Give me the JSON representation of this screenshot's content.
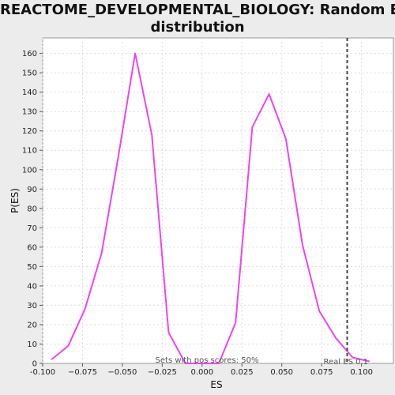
{
  "chart_data": {
    "type": "line",
    "title_line1": "REACTOME_DEVELOPMENTAL_BIOLOGY: Random ES",
    "title_line2": "distribution",
    "xlabel": "ES",
    "ylabel": "P(ES)",
    "xlim": [
      -0.1,
      0.12
    ],
    "ylim": [
      0,
      168
    ],
    "x_ticks": [
      -0.1,
      -0.075,
      -0.05,
      -0.025,
      0.0,
      0.025,
      0.05,
      0.075,
      0.1
    ],
    "x_tick_labels": [
      "-0.100",
      "−0.075",
      "−0.050",
      "−0.025",
      "0.000",
      "0.025",
      "0.050",
      "0.075",
      "0.100"
    ],
    "y_ticks": [
      0,
      10,
      20,
      30,
      40,
      50,
      60,
      70,
      80,
      90,
      100,
      110,
      120,
      130,
      140,
      150,
      160
    ],
    "grid": true,
    "series": [
      {
        "color": "#ee44ee",
        "x": [
          -0.0945,
          -0.084,
          -0.0735,
          -0.063,
          -0.0525,
          -0.042,
          -0.0315,
          -0.021,
          -0.0105,
          0.0,
          0.0105,
          0.021,
          0.0315,
          0.042,
          0.0525,
          0.063,
          0.0735,
          0.084,
          0.0945,
          0.105
        ],
        "values": [
          2,
          9,
          28,
          57,
          107,
          160,
          118,
          16,
          0,
          0,
          0,
          21,
          122,
          139,
          116,
          61,
          27,
          13,
          3,
          1
        ]
      }
    ],
    "real_es": 0.091,
    "real_es_color": "#444444",
    "annotation_center": "Sets with pos scores: 50%",
    "annotation_right": "Real ES 0.1"
  }
}
